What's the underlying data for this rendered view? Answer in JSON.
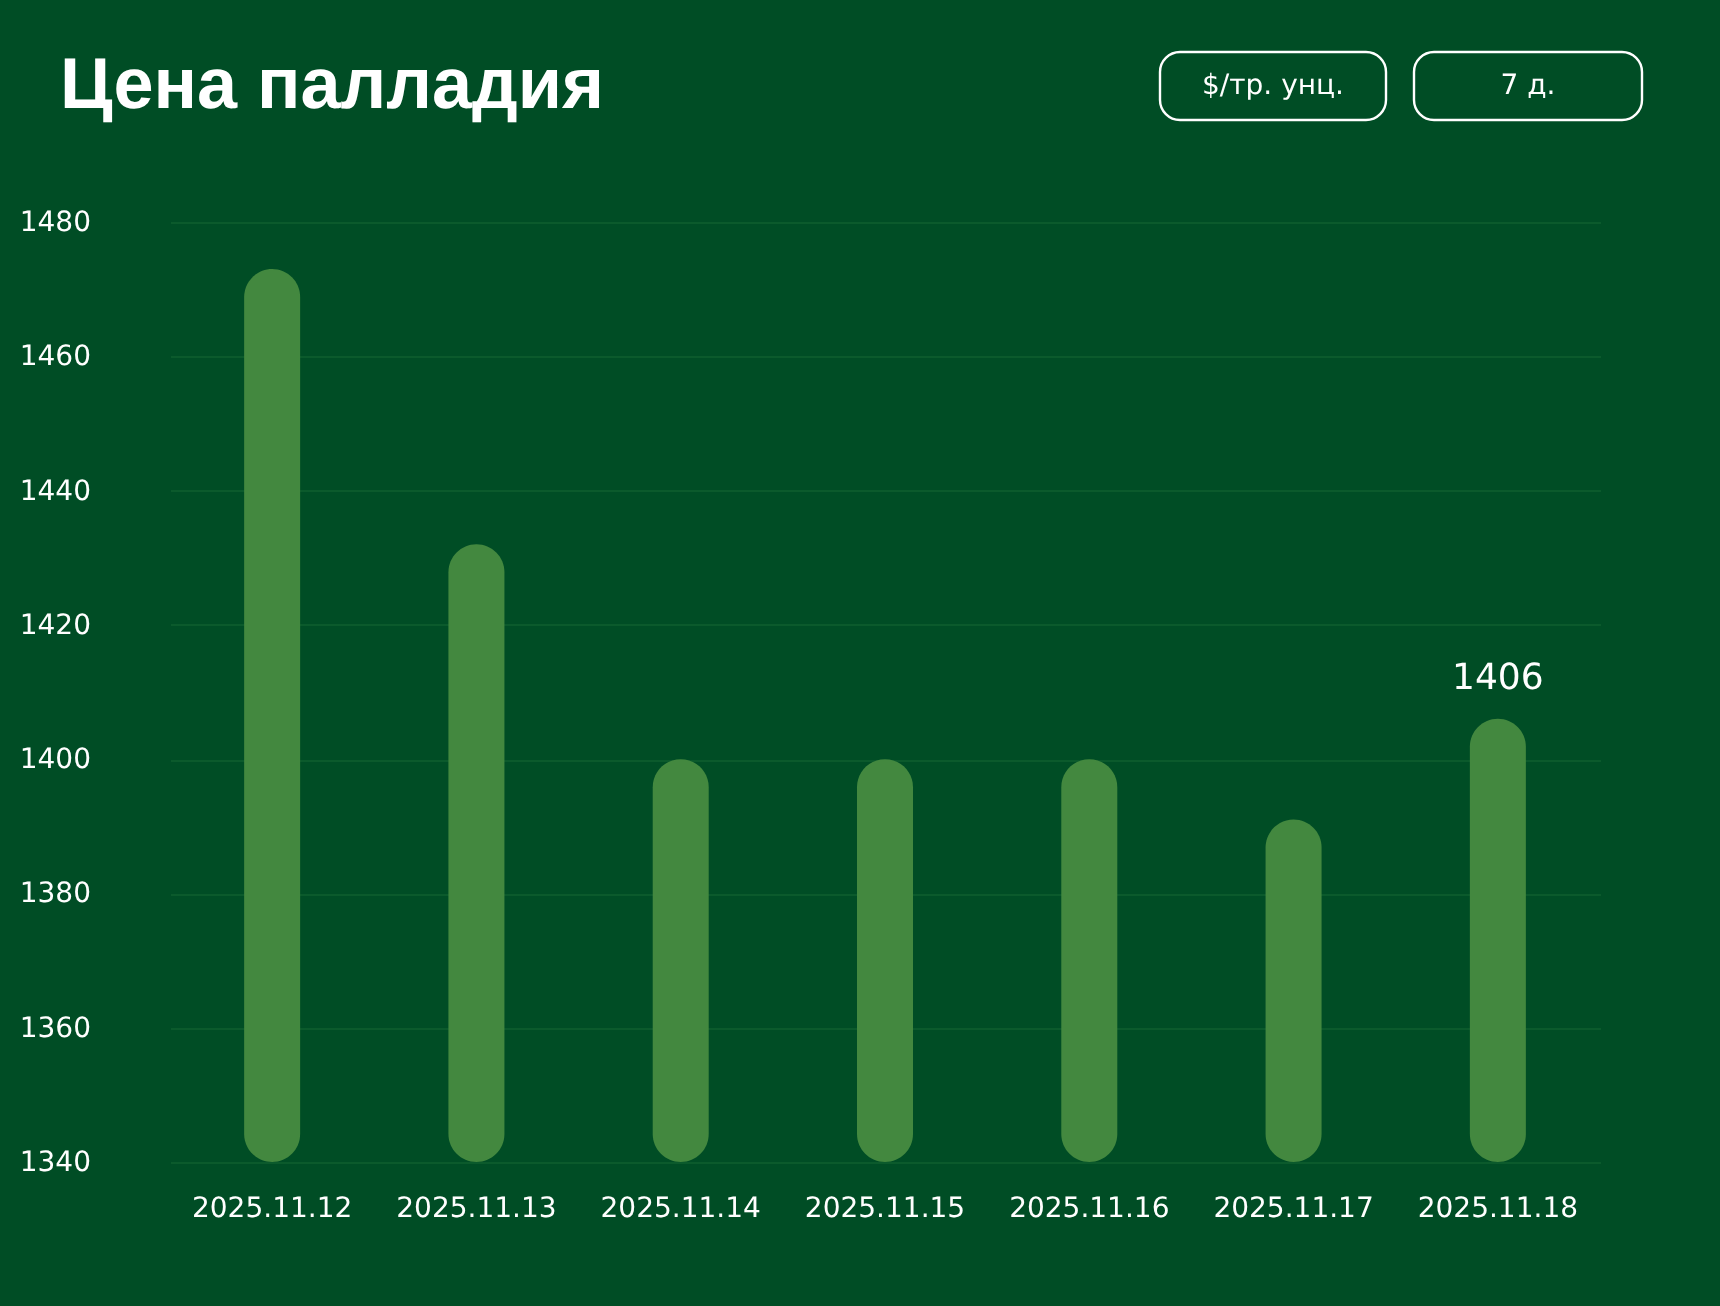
{
  "chart_data": {
    "type": "bar",
    "title": "Цена палладия",
    "annotations": [
      "$/тр. унц.",
      "7 д."
    ],
    "categories": [
      "2025.11.12",
      "2025.11.13",
      "2025.11.14",
      "2025.11.15",
      "2025.11.16",
      "2025.11.17",
      "2025.11.18"
    ],
    "values": [
      1473,
      1432,
      1400,
      1400,
      1400,
      1391,
      1406
    ],
    "value_labels": [
      null,
      null,
      null,
      null,
      null,
      null,
      "1406"
    ],
    "color": "#43883f",
    "ylim": [
      1340,
      1480
    ],
    "yticks": [
      1340,
      1360,
      1380,
      1400,
      1420,
      1440,
      1460,
      1480
    ],
    "grid": "y"
  }
}
